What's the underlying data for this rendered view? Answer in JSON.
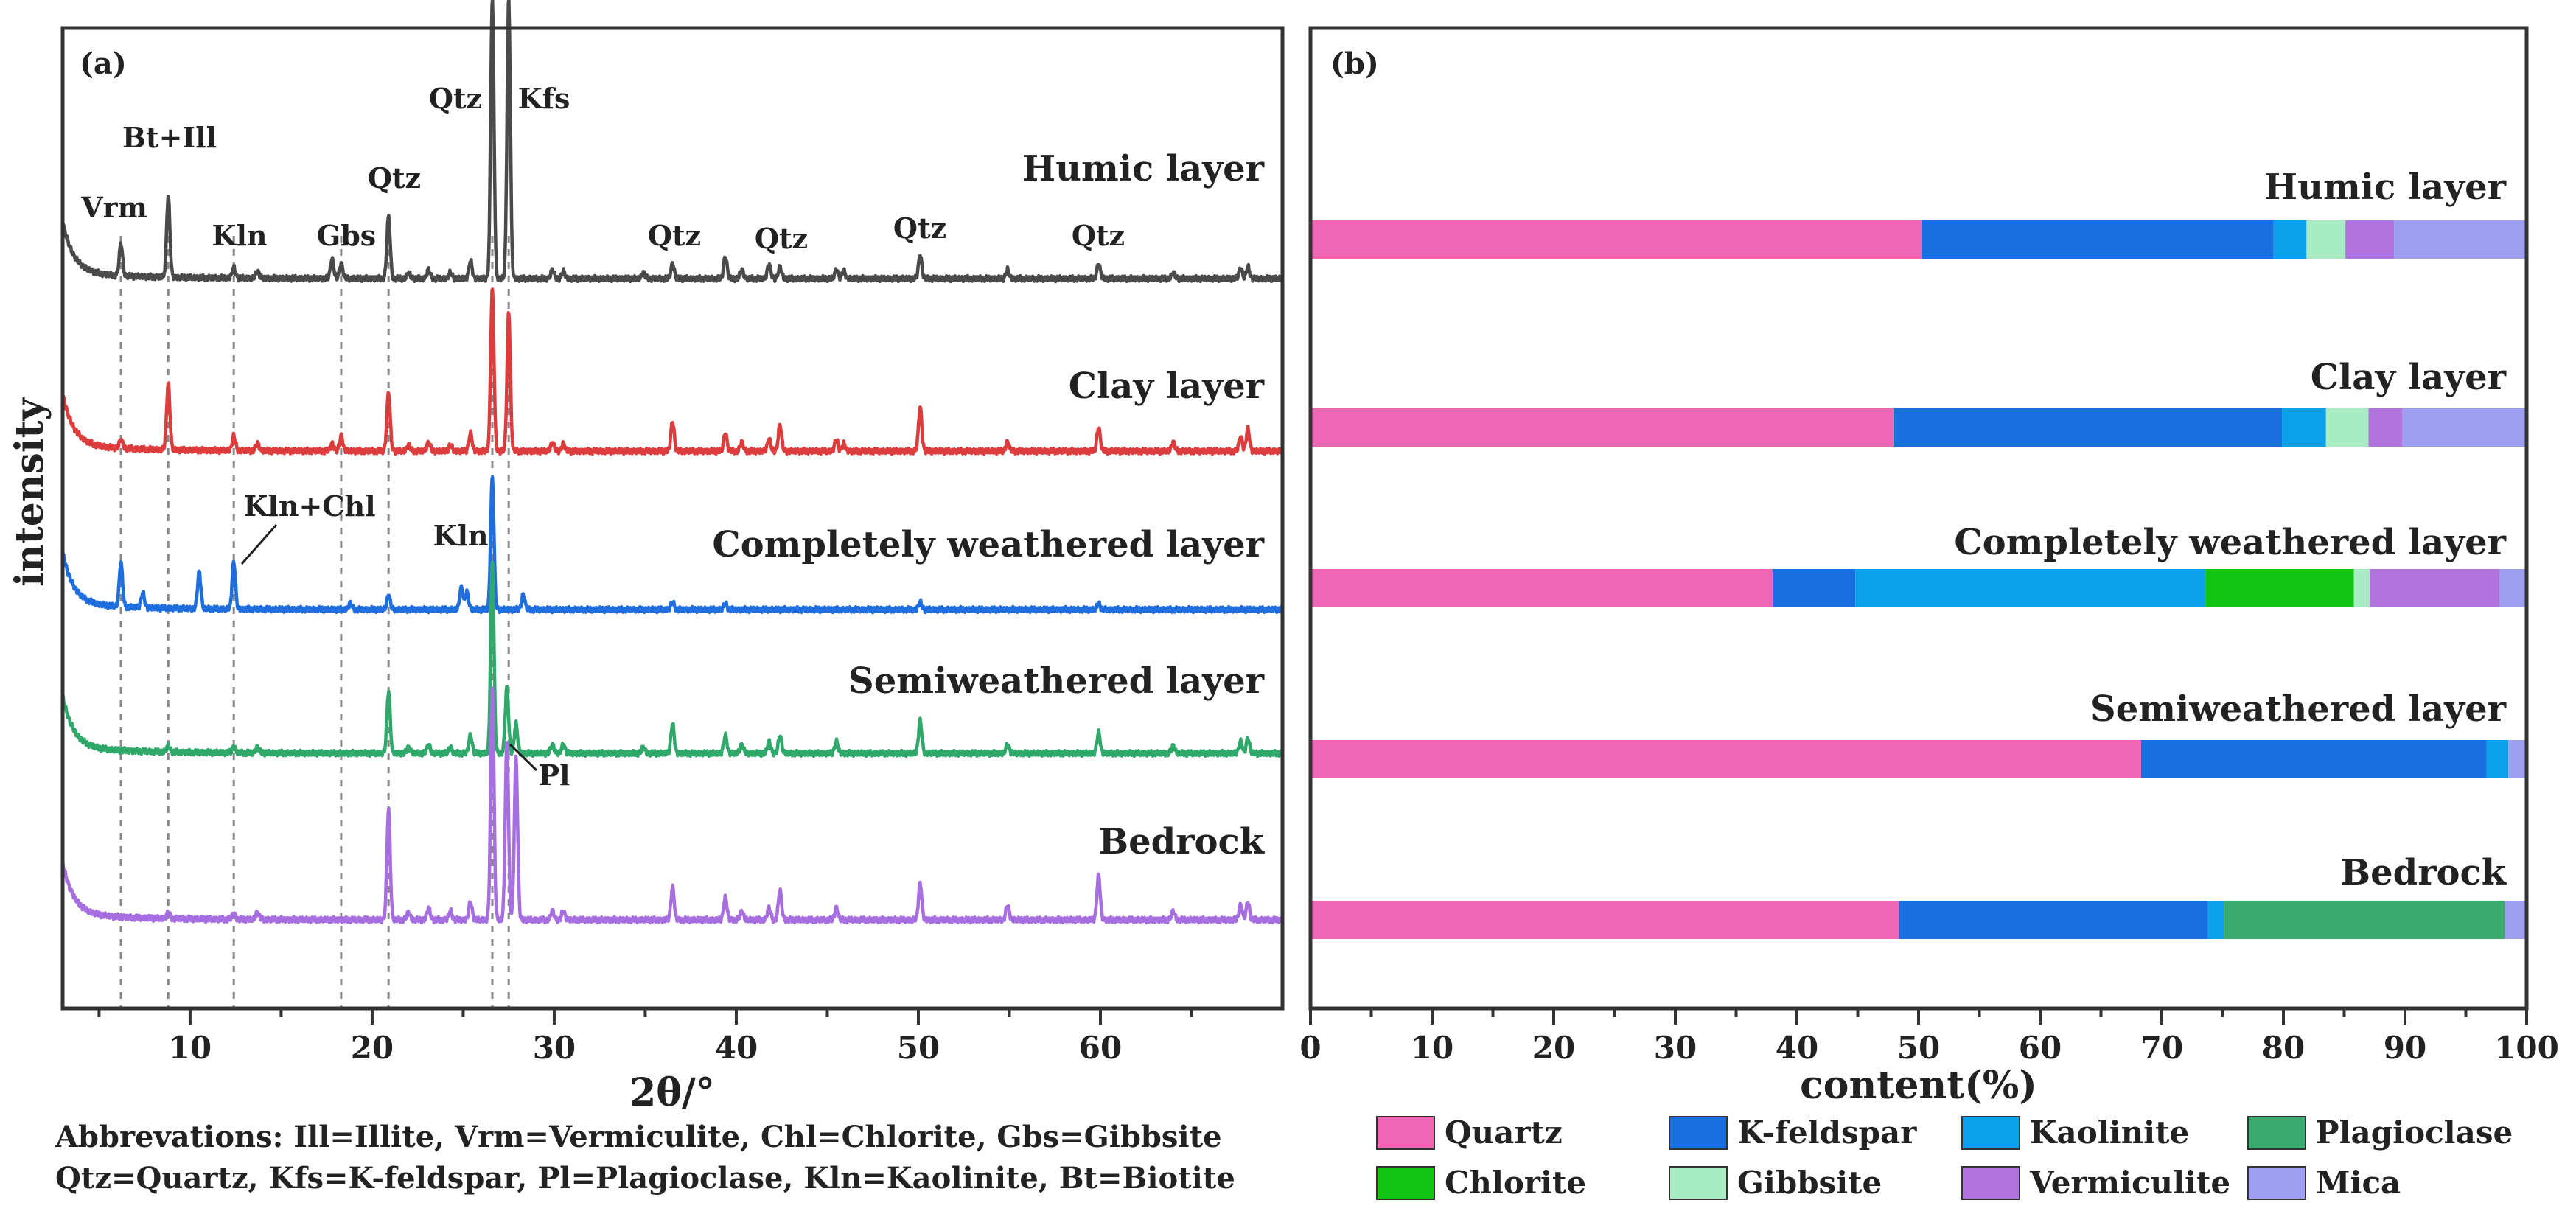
{
  "abbreviations": [
    "Abbrevations: Ill=Illite, Vrm=Vermiculite, Chl=Chlorite, Gbs=Gibbsite",
    "Qtz=Quartz, Kfs=K-feldspar, Pl=Plagioclase, Kln=Kaolinite, Bt=Biotite"
  ],
  "chart_data": [
    {
      "type": "line",
      "panel_label": "(a)",
      "title": "",
      "xlabel": "2θ/°",
      "ylabel": "intensity",
      "xlim": [
        3,
        70
      ],
      "xticks": [
        10,
        20,
        30,
        40,
        50,
        60
      ],
      "series": [
        {
          "name": "Humic layer",
          "color": "#4a4a4a",
          "baseline": 1.0,
          "peaks": [
            [
              6.2,
              0.22
            ],
            [
              8.8,
              0.55
            ],
            [
              12.4,
              0.07
            ],
            [
              13.7,
              0.05
            ],
            [
              17.8,
              0.13
            ],
            [
              18.3,
              0.1
            ],
            [
              20.9,
              0.42
            ],
            [
              22.0,
              0.04
            ],
            [
              23.1,
              0.06
            ],
            [
              24.3,
              0.04
            ],
            [
              25.4,
              0.12
            ],
            [
              26.6,
              1.9
            ],
            [
              27.5,
              1.9
            ],
            [
              29.9,
              0.06
            ],
            [
              30.5,
              0.05
            ],
            [
              34.9,
              0.04
            ],
            [
              36.5,
              0.1
            ],
            [
              39.4,
              0.15
            ],
            [
              40.3,
              0.06
            ],
            [
              41.8,
              0.1
            ],
            [
              42.4,
              0.08
            ],
            [
              45.5,
              0.06
            ],
            [
              45.9,
              0.05
            ],
            [
              50.1,
              0.16
            ],
            [
              54.9,
              0.06
            ],
            [
              59.9,
              0.1
            ],
            [
              64.0,
              0.04
            ],
            [
              67.7,
              0.07
            ],
            [
              68.1,
              0.08
            ]
          ]
        },
        {
          "name": "Clay layer",
          "color": "#dd3c3c",
          "baseline": 1.0,
          "peaks": [
            [
              6.2,
              0.06
            ],
            [
              8.8,
              0.45
            ],
            [
              12.4,
              0.1
            ],
            [
              13.7,
              0.05
            ],
            [
              17.8,
              0.05
            ],
            [
              18.3,
              0.1
            ],
            [
              20.9,
              0.4
            ],
            [
              22.0,
              0.04
            ],
            [
              23.1,
              0.06
            ],
            [
              24.3,
              0.04
            ],
            [
              25.4,
              0.12
            ],
            [
              26.6,
              1.1
            ],
            [
              27.5,
              0.95
            ],
            [
              29.9,
              0.06
            ],
            [
              30.5,
              0.05
            ],
            [
              36.5,
              0.2
            ],
            [
              39.4,
              0.12
            ],
            [
              40.3,
              0.06
            ],
            [
              41.8,
              0.08
            ],
            [
              42.4,
              0.18
            ],
            [
              45.5,
              0.08
            ],
            [
              45.9,
              0.05
            ],
            [
              50.1,
              0.3
            ],
            [
              54.9,
              0.06
            ],
            [
              59.9,
              0.16
            ],
            [
              64.0,
              0.06
            ],
            [
              67.7,
              0.1
            ],
            [
              68.1,
              0.15
            ]
          ]
        },
        {
          "name": "Completely weathered layer",
          "color": "#1e6ee0",
          "baseline": 1.0,
          "peaks": [
            [
              6.2,
              0.3
            ],
            [
              7.4,
              0.1
            ],
            [
              10.5,
              0.25
            ],
            [
              12.4,
              0.32
            ],
            [
              18.8,
              0.04
            ],
            [
              20.9,
              0.1
            ],
            [
              24.9,
              0.15
            ],
            [
              25.2,
              0.12
            ],
            [
              26.6,
              0.9
            ],
            [
              28.3,
              0.1
            ],
            [
              36.5,
              0.05
            ],
            [
              39.4,
              0.04
            ],
            [
              50.1,
              0.05
            ],
            [
              59.9,
              0.04
            ]
          ]
        },
        {
          "name": "Semiweathered layer",
          "color": "#2fa86a",
          "baseline": 1.0,
          "peaks": [
            [
              8.8,
              0.04
            ],
            [
              12.4,
              0.04
            ],
            [
              13.7,
              0.04
            ],
            [
              20.9,
              0.42
            ],
            [
              22.0,
              0.04
            ],
            [
              23.1,
              0.06
            ],
            [
              24.3,
              0.04
            ],
            [
              25.4,
              0.12
            ],
            [
              26.6,
              1.3
            ],
            [
              27.4,
              0.45
            ],
            [
              27.9,
              0.2
            ],
            [
              29.9,
              0.06
            ],
            [
              30.5,
              0.06
            ],
            [
              34.9,
              0.04
            ],
            [
              36.5,
              0.2
            ],
            [
              39.4,
              0.12
            ],
            [
              40.3,
              0.06
            ],
            [
              41.8,
              0.08
            ],
            [
              42.4,
              0.12
            ],
            [
              45.5,
              0.08
            ],
            [
              50.1,
              0.22
            ],
            [
              54.9,
              0.06
            ],
            [
              59.9,
              0.14
            ],
            [
              64.0,
              0.05
            ],
            [
              67.7,
              0.08
            ],
            [
              68.1,
              0.1
            ]
          ]
        },
        {
          "name": "Bedrock",
          "color": "#a66ee0",
          "baseline": 1.0,
          "peaks": [
            [
              8.8,
              0.04
            ],
            [
              12.4,
              0.04
            ],
            [
              13.7,
              0.05
            ],
            [
              20.9,
              0.75
            ],
            [
              22.0,
              0.05
            ],
            [
              23.1,
              0.08
            ],
            [
              24.3,
              0.06
            ],
            [
              25.4,
              0.12
            ],
            [
              26.6,
              1.6
            ],
            [
              27.4,
              1.2
            ],
            [
              27.9,
              1.1
            ],
            [
              29.9,
              0.06
            ],
            [
              30.5,
              0.06
            ],
            [
              36.5,
              0.22
            ],
            [
              39.4,
              0.15
            ],
            [
              40.3,
              0.06
            ],
            [
              41.8,
              0.08
            ],
            [
              42.4,
              0.2
            ],
            [
              45.5,
              0.08
            ],
            [
              50.1,
              0.25
            ],
            [
              54.9,
              0.1
            ],
            [
              59.9,
              0.3
            ],
            [
              64.0,
              0.06
            ],
            [
              67.7,
              0.1
            ],
            [
              68.1,
              0.12
            ]
          ]
        }
      ],
      "reference_lines_2theta": [
        6.2,
        8.8,
        12.4,
        18.3,
        20.9,
        26.6,
        27.5
      ],
      "annotations": [
        {
          "text": "Vrm",
          "x": 6.2,
          "series": "Humic layer"
        },
        {
          "text": "Bt+Ill",
          "x": 8.8,
          "series": "Humic layer"
        },
        {
          "text": "Kln",
          "x": 12.4,
          "series": "Humic layer"
        },
        {
          "text": "Gbs",
          "x": 18.3,
          "series": "Humic layer"
        },
        {
          "text": "Qtz",
          "x": 20.9,
          "series": "Humic layer"
        },
        {
          "text": "Qtz",
          "x": 26.6,
          "series": "Humic layer"
        },
        {
          "text": "Kfs",
          "x": 27.5,
          "series": "Humic layer"
        },
        {
          "text": "Qtz",
          "x": 36.5,
          "series": "Humic layer"
        },
        {
          "text": "Qtz",
          "x": 42.4,
          "series": "Humic layer"
        },
        {
          "text": "Qtz",
          "x": 50.1,
          "series": "Humic layer"
        },
        {
          "text": "Qtz",
          "x": 59.9,
          "series": "Humic layer"
        },
        {
          "text": "Kln+Chl",
          "x": 12.4,
          "series": "Completely weathered layer"
        },
        {
          "text": "Kln",
          "x": 24.9,
          "series": "Completely weathered layer"
        },
        {
          "text": "Pl",
          "x": 27.9,
          "series": "Semiweathered layer"
        }
      ]
    },
    {
      "type": "stacked_bar_horizontal",
      "panel_label": "(b)",
      "title": "",
      "xlabel": "content(%)",
      "xlim": [
        0,
        100
      ],
      "xticks": [
        0,
        10,
        20,
        30,
        40,
        50,
        60,
        70,
        80,
        90,
        100
      ],
      "categories": [
        "Humic layer",
        "Clay layer",
        "Completely weathered layer",
        "Semiweathered layer",
        "Bedrock"
      ],
      "series": [
        {
          "name": "Quartz",
          "color": "#ee66b4",
          "values": [
            50.3,
            48.0,
            38.0,
            68.3,
            48.4
          ]
        },
        {
          "name": "K-feldspar",
          "color": "#1a6fe0",
          "values": [
            28.9,
            31.9,
            6.8,
            28.4,
            25.4
          ]
        },
        {
          "name": "Kaolinite",
          "color": "#0aa0ea",
          "values": [
            2.7,
            3.6,
            28.8,
            1.8,
            1.3
          ]
        },
        {
          "name": "Plagioclase",
          "color": "#3aaa6e",
          "values": [
            0,
            0,
            0,
            0,
            23.1
          ]
        },
        {
          "name": "Chlorite",
          "color": "#12c412",
          "values": [
            0,
            0,
            12.2,
            0,
            0
          ]
        },
        {
          "name": "Gibbsite",
          "color": "#a8ecc4",
          "values": [
            3.2,
            3.5,
            1.3,
            0,
            0
          ]
        },
        {
          "name": "Vermiculite",
          "color": "#b174de",
          "values": [
            4.0,
            2.8,
            10.7,
            0,
            0
          ]
        },
        {
          "name": "Mica",
          "color": "#9e9ff2",
          "values": [
            10.9,
            10.2,
            2.2,
            1.5,
            1.8
          ]
        }
      ]
    }
  ]
}
